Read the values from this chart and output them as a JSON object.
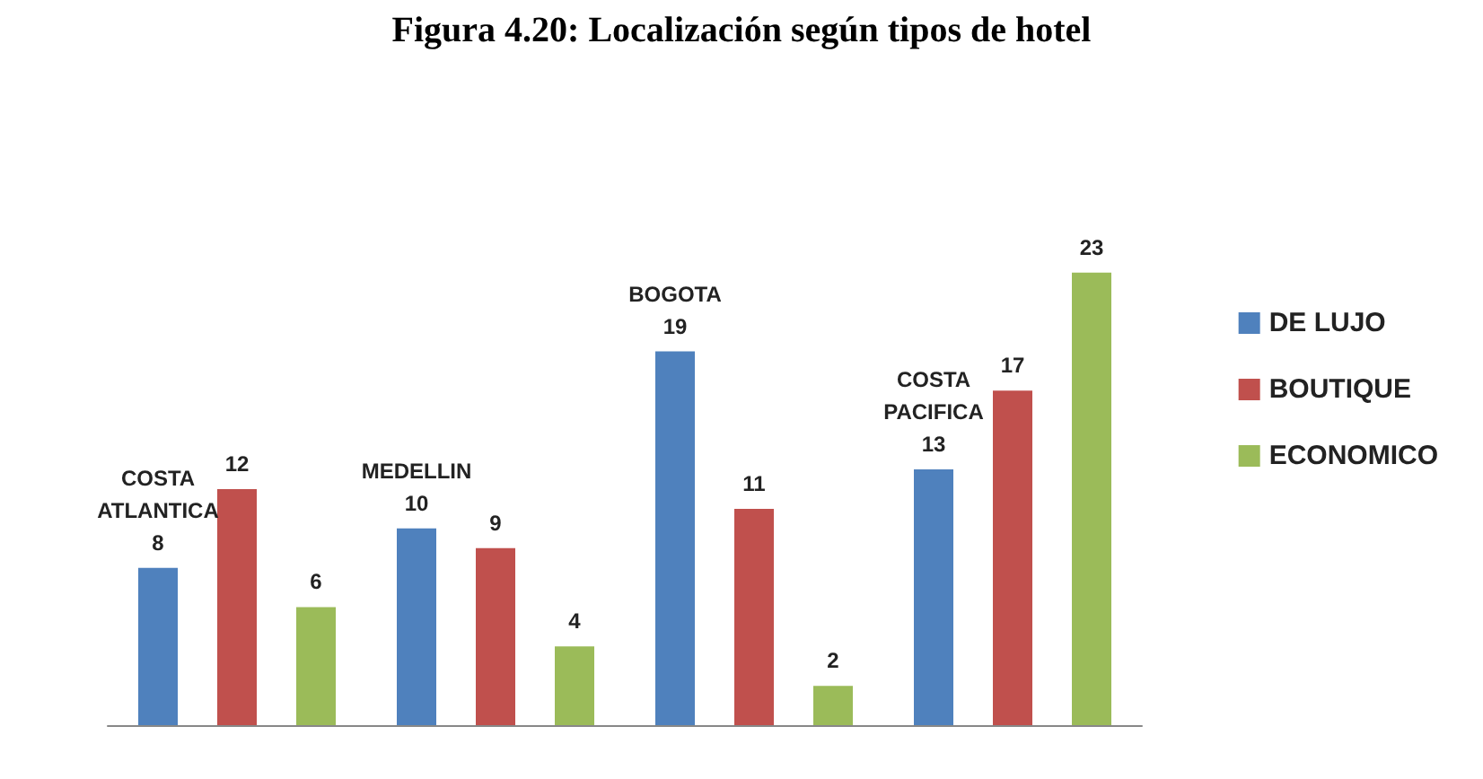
{
  "chart_data": {
    "type": "bar",
    "title": "Figura 4.20: Localización según tipos de hotel",
    "categories": [
      "COSTA ATLANTICA",
      "MEDELLIN",
      "BOGOTA",
      "COSTA PACIFICA"
    ],
    "series": [
      {
        "name": "DE LUJO",
        "color": "#4f81bd",
        "values": [
          8,
          10,
          19,
          13
        ]
      },
      {
        "name": "BOUTIQUE",
        "color": "#c0504d",
        "values": [
          12,
          9,
          11,
          17
        ]
      },
      {
        "name": "ECONOMICO",
        "color": "#9bbb59",
        "values": [
          6,
          4,
          2,
          23
        ]
      }
    ],
    "data_labels": true,
    "legend": "right"
  }
}
